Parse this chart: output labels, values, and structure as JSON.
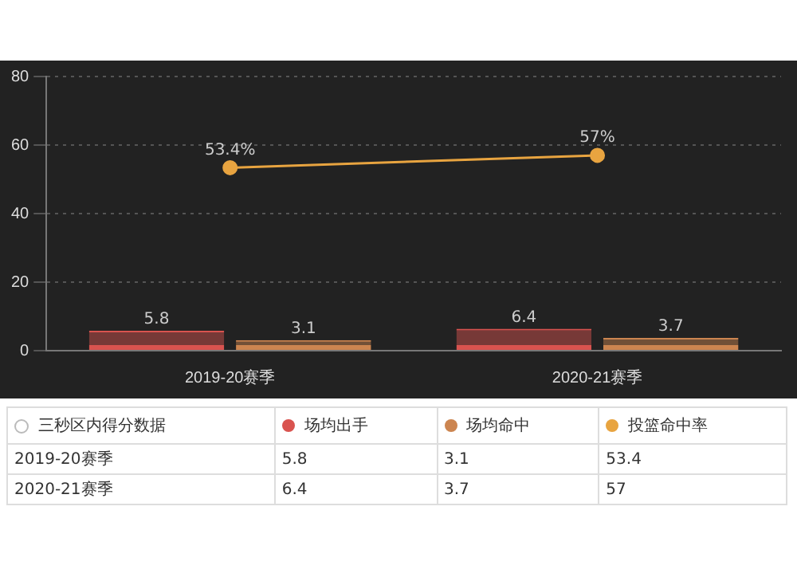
{
  "chart_data": {
    "type": "bar",
    "legend_title": "三秒区内得分数据",
    "categories": [
      "2019-20赛季",
      "2020-21赛季"
    ],
    "series": [
      {
        "name": "场均出手",
        "color": "#d9534f",
        "values": [
          5.8,
          6.4
        ],
        "value_labels": [
          "5.8",
          "6.4"
        ]
      },
      {
        "name": "场均命中",
        "color": "#cc8550",
        "values": [
          3.1,
          3.7
        ],
        "value_labels": [
          "3.1",
          "3.7"
        ]
      },
      {
        "name": "投篮命中率",
        "type": "line",
        "color": "#e8a440",
        "values": [
          53.4,
          57
        ],
        "value_labels": [
          "53.4%",
          "57%"
        ],
        "marker": "circle"
      }
    ],
    "ylim": [
      0,
      80
    ],
    "yticks": [
      0,
      20,
      40,
      60,
      80
    ],
    "grid": "y",
    "legend": "bottom",
    "data_labels": true,
    "annotations": [
      "5.8",
      "3.1",
      "53.4",
      "6.4",
      "3.7",
      "57"
    ]
  }
}
